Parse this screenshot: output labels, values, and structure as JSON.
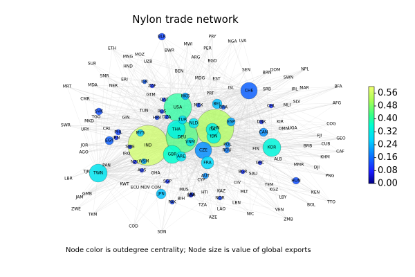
{
  "figure": {
    "title": "Nylon trade network",
    "caption": "Node color is outdegree centrality; Node size is value of global exports"
  },
  "colorbar": {
    "ticks": [
      "0.56",
      "0.48",
      "0.40",
      "0.32",
      "0.24",
      "0.16",
      "0.08",
      "0.00"
    ],
    "range": [
      0,
      0.6
    ],
    "colormap": "gist_ncar-like (navy → blue → cyan → green → yellow)"
  },
  "nodes": [
    {
      "id": "IND",
      "big": true
    },
    {
      "id": "CHN",
      "big": true
    },
    {
      "id": "USA",
      "big": true
    },
    {
      "id": "DEU",
      "big": true
    },
    {
      "id": "THA"
    },
    {
      "id": "TWN"
    },
    {
      "id": "KOR"
    },
    {
      "id": "GBR"
    },
    {
      "id": "ARE"
    },
    {
      "id": "CZE"
    },
    {
      "id": "ITA"
    },
    {
      "id": "IDN"
    },
    {
      "id": "CHE"
    },
    {
      "id": "FRA"
    },
    {
      "id": "BEL"
    },
    {
      "id": "NLD"
    },
    {
      "id": "ESP"
    },
    {
      "id": "TUR"
    },
    {
      "id": "VNM"
    },
    {
      "id": "POL"
    },
    {
      "id": "JPN"
    },
    {
      "id": "CAN"
    },
    {
      "id": "EGY"
    },
    {
      "id": "BLR"
    },
    {
      "id": "SVK"
    },
    {
      "id": "HUN"
    },
    {
      "id": "PHL"
    },
    {
      "id": "HKG"
    },
    {
      "id": "AUT"
    },
    {
      "id": "MYS"
    },
    {
      "id": "WSM"
    },
    {
      "id": "ROU"
    },
    {
      "id": "BRA"
    },
    {
      "id": "ISR"
    },
    {
      "id": "DZA"
    },
    {
      "id": "MEX"
    },
    {
      "id": "QAT"
    },
    {
      "id": "RUS"
    },
    {
      "id": "HRV"
    },
    {
      "id": "PAK"
    },
    {
      "id": "NOR"
    },
    {
      "id": "LKA"
    },
    {
      "id": "CUB"
    },
    {
      "id": "SWE"
    },
    {
      "id": "ZAF"
    },
    {
      "id": "BGR"
    },
    {
      "id": "DNK"
    },
    {
      "id": "PRY"
    },
    {
      "id": "NGA"
    },
    {
      "id": "LVA"
    },
    {
      "id": "ETH"
    },
    {
      "id": "SDN"
    },
    {
      "id": "MNG"
    },
    {
      "id": "MOZ"
    },
    {
      "id": "BWR"
    },
    {
      "id": "MWI"
    },
    {
      "id": "PER"
    },
    {
      "id": "ARG"
    },
    {
      "id": "BGD"
    },
    {
      "id": "SUR"
    },
    {
      "id": "HND"
    },
    {
      "id": "UZB"
    },
    {
      "id": "BEN"
    },
    {
      "id": "SEN"
    },
    {
      "id": "DOM"
    },
    {
      "id": "BRN"
    },
    {
      "id": "NPL"
    },
    {
      "id": "SMR"
    },
    {
      "id": "MDG"
    },
    {
      "id": "EST"
    },
    {
      "id": "SWN"
    },
    {
      "id": "MRT"
    },
    {
      "id": "MDA"
    },
    {
      "id": "NER"
    },
    {
      "id": "ERI"
    },
    {
      "id": "ISL"
    },
    {
      "id": "LTU"
    },
    {
      "id": "SRB"
    },
    {
      "id": "IRL"
    },
    {
      "id": "MAR"
    },
    {
      "id": "BFA"
    },
    {
      "id": "CMR"
    },
    {
      "id": "GTM"
    },
    {
      "id": "PRT"
    },
    {
      "id": "SLV"
    },
    {
      "id": "AFG"
    },
    {
      "id": "CHL"
    },
    {
      "id": "MLI"
    },
    {
      "id": "TUN"
    },
    {
      "id": "GIN"
    },
    {
      "id": "MKD"
    },
    {
      "id": "TGO"
    },
    {
      "id": "SWR"
    },
    {
      "id": "URY"
    },
    {
      "id": "CRI"
    },
    {
      "id": "IRN"
    },
    {
      "id": "JOR"
    },
    {
      "id": "AGO"
    },
    {
      "id": "NZL"
    },
    {
      "id": "IRQ"
    },
    {
      "id": "AUS"
    },
    {
      "id": "GHA"
    },
    {
      "id": "TJK"
    },
    {
      "id": "PAN"
    },
    {
      "id": "LBR"
    },
    {
      "id": "KWT"
    },
    {
      "id": "ECU"
    },
    {
      "id": "MDV"
    },
    {
      "id": "COM"
    },
    {
      "id": "SGP"
    },
    {
      "id": "GMB"
    },
    {
      "id": "JAM"
    },
    {
      "id": "ZWE"
    },
    {
      "id": "TKM"
    },
    {
      "id": "COD"
    },
    {
      "id": "MUS"
    },
    {
      "id": "LBA"
    },
    {
      "id": "BIH"
    },
    {
      "id": "CIV"
    },
    {
      "id": "CYP"
    },
    {
      "id": "HTI"
    },
    {
      "id": "KAZ"
    },
    {
      "id": "MLT"
    },
    {
      "id": "TZA"
    },
    {
      "id": "LBN"
    },
    {
      "id": "LAO"
    },
    {
      "id": "AZE"
    },
    {
      "id": "NIC"
    },
    {
      "id": "FIN"
    },
    {
      "id": "GRC"
    },
    {
      "id": "SAU"
    },
    {
      "id": "YEM"
    },
    {
      "id": "KGZ"
    },
    {
      "id": "LBY"
    },
    {
      "id": "VEN"
    },
    {
      "id": "ZMB"
    },
    {
      "id": "ALB"
    },
    {
      "id": "MMR"
    },
    {
      "id": "DJI"
    },
    {
      "id": "PNG"
    },
    {
      "id": "KEN"
    },
    {
      "id": "BOL"
    },
    {
      "id": "TTO"
    },
    {
      "id": "COG"
    },
    {
      "id": "FJI"
    },
    {
      "id": "GEO"
    },
    {
      "id": "BRB"
    },
    {
      "id": "CAF"
    },
    {
      "id": "KHM"
    },
    {
      "id": "OMN"
    },
    {
      "id": "UGA"
    },
    {
      "id": "KIR"
    }
  ]
}
